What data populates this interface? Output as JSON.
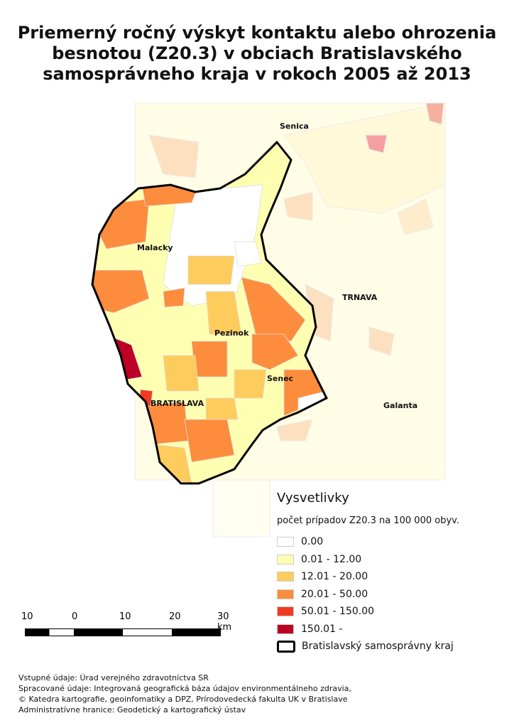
{
  "title": "Priemerný ročný výskyt kontaktu alebo ohrozenia besnotou (Z20.3) v obciach Bratislavského samosprávneho kraja v rokoch 2005 až 2013",
  "map": {
    "place_labels": [
      "Senica",
      "TRNAVA",
      "Malacky",
      "Pezinok",
      "Senec",
      "BRATISLAVA",
      "Galanta"
    ]
  },
  "legend": {
    "heading": "Vysvetlivky",
    "subtitle": "počet prípadov Z20.3 na 100 000 obyv.",
    "classes": [
      {
        "label": "0.00",
        "color": "#ffffff"
      },
      {
        "label": "0.01 - 12.00",
        "color": "#ffffb2"
      },
      {
        "label": "12.01 - 20.00",
        "color": "#fecc5c"
      },
      {
        "label": "20.01 - 50.00",
        "color": "#fd8d3c"
      },
      {
        "label": "50.01 - 150.00",
        "color": "#f03b20"
      },
      {
        "label": "150.01 -",
        "color": "#bd0026"
      }
    ],
    "boundary_label": "Bratislavský samosprávny kraj"
  },
  "scalebar": {
    "ticks": [
      "10",
      "0",
      "10",
      "20",
      "30 km"
    ]
  },
  "footer": [
    "Vstupné údaje: Úrad verejného zdravotníctva SR",
    "Spracované údaje: Integrovaná geografická báza údajov environmentálneho zdravia,",
    "© Katedra kartografie, geoinfomatiky a DPZ, Prírodovedecká fakulta UK v Bratislave",
    "Administratívne hranice: Geodetický a kartografický ústav"
  ]
}
